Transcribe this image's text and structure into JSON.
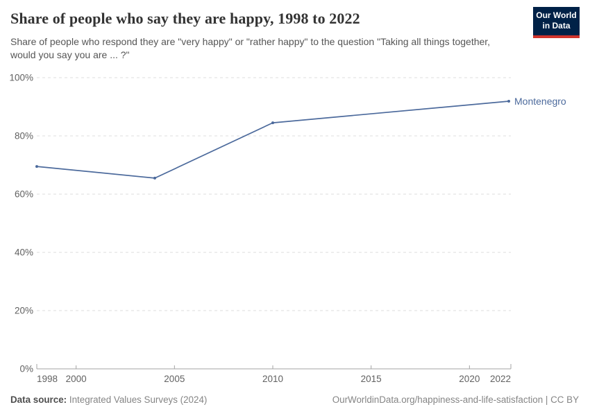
{
  "header": {
    "title": "Share of people who say they are happy, 1998 to 2022",
    "subtitle": "Share of people who respond they are \"very happy\" or \"rather happy\" to the question \"Taking all things together, would you say you are ... ?\"",
    "logo": {
      "line1": "Our World",
      "line2": "in Data"
    }
  },
  "chart_data": {
    "type": "line",
    "title": "Share of people who say they are happy, 1998 to 2022",
    "xlabel": "",
    "ylabel": "",
    "xlim": [
      1998,
      2022
    ],
    "ylim": [
      0,
      100
    ],
    "x_ticks": [
      1998,
      2000,
      2005,
      2010,
      2015,
      2020,
      2022
    ],
    "y_ticks": [
      0,
      20,
      40,
      60,
      80,
      100
    ],
    "y_tick_suffix": "%",
    "grid": "horizontal-dashed",
    "legend_position": "end-of-line-label",
    "series": [
      {
        "name": "Montenegro",
        "color": "#4c6a9c",
        "x": [
          1998,
          2004,
          2010,
          2022
        ],
        "y": [
          69.5,
          65.5,
          84.5,
          91.9
        ]
      }
    ]
  },
  "footer": {
    "source_label": "Data source:",
    "source_value": "Integrated Values Surveys (2024)",
    "attribution": "OurWorldinData.org/happiness-and-life-satisfaction | CC BY"
  },
  "colors": {
    "series_line": "#4c6a9c",
    "gridline": "#dcdcdc",
    "axis": "#a3a3a3",
    "tick_text": "#616161",
    "logo_navy": "#002147",
    "logo_red": "#d0342c",
    "title_text": "#333333",
    "subtitle_text": "#555555"
  }
}
